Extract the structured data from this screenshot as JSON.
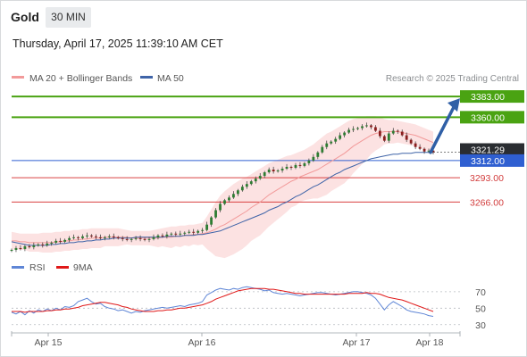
{
  "header": {
    "symbol": "Gold",
    "timeframe": "30 MIN"
  },
  "timestamp": "Thursday, April 17, 2025 11:39:10 AM CET",
  "credit": "Research © 2025 Trading Central",
  "colors": {
    "support": "#d94040",
    "resistance": "#4aa312",
    "pivot": "#2f5fd1",
    "last_price": "#2a2d31",
    "arrow": "#2f5fa6",
    "bb_band": "#f9caca",
    "ma20": "#f29a9a",
    "ma50": "#3f64a8",
    "rsi": "#5f86d6",
    "rsi_ma": "#e01818"
  },
  "chart_data": [
    {
      "type": "candlestick",
      "legend": [
        {
          "name": "MA 20 + Bollinger Bands",
          "color": "#f29a9a"
        },
        {
          "name": "MA 50",
          "color": "#3f64a8"
        }
      ],
      "x_ticks": [
        "Apr 15",
        "Apr 16",
        "Apr 17",
        "Apr 18"
      ],
      "ylim": [
        3212,
        3392
      ],
      "levels": [
        {
          "label": "3383.00",
          "value": 3383,
          "kind": "resistance"
        },
        {
          "label": "3360.00",
          "value": 3360,
          "kind": "resistance"
        },
        {
          "label": "3321.29",
          "value": 3321.29,
          "kind": "last-price"
        },
        {
          "label": "3312.00",
          "value": 3312,
          "kind": "pivot"
        },
        {
          "label": "3293.00",
          "value": 3293,
          "kind": "support"
        },
        {
          "label": "3266.00",
          "value": 3266,
          "kind": "support"
        }
      ],
      "arrow": {
        "from_value": 3322,
        "to_value": 3383,
        "direction": "up"
      },
      "price_series": [
        3213,
        3215,
        3214,
        3217,
        3216,
        3218,
        3219,
        3218,
        3220,
        3221,
        3223,
        3222,
        3224,
        3226,
        3227,
        3226,
        3228,
        3229,
        3228,
        3227,
        3226,
        3227,
        3228,
        3227,
        3226,
        3225,
        3224,
        3225,
        3226,
        3225,
        3224,
        3225,
        3227,
        3229,
        3228,
        3230,
        3231,
        3230,
        3231,
        3232,
        3233,
        3232,
        3234,
        3235,
        3241,
        3249,
        3257,
        3264,
        3268,
        3271,
        3275,
        3279,
        3283,
        3286,
        3289,
        3292,
        3295,
        3299,
        3302,
        3300,
        3301,
        3303,
        3305,
        3304,
        3307,
        3306,
        3309,
        3312,
        3316,
        3321,
        3327,
        3331,
        3333,
        3336,
        3340,
        3343,
        3346,
        3347,
        3348,
        3350,
        3351,
        3349,
        3345,
        3339,
        3334,
        3342,
        3345,
        3344,
        3340,
        3335,
        3331,
        3327,
        3325,
        3322,
        3323,
        3321.29
      ],
      "ma20_series": [
        3223,
        3223,
        3222,
        3222,
        3221,
        3221,
        3221,
        3221,
        3221,
        3221,
        3222,
        3222,
        3223,
        3223,
        3224,
        3224,
        3225,
        3225,
        3226,
        3226,
        3226,
        3227,
        3227,
        3227,
        3227,
        3227,
        3227,
        3226,
        3226,
        3226,
        3226,
        3226,
        3226,
        3226,
        3227,
        3227,
        3227,
        3228,
        3228,
        3229,
        3229,
        3230,
        3230,
        3231,
        3232,
        3234,
        3236,
        3239,
        3241,
        3244,
        3247,
        3250,
        3253,
        3256,
        3260,
        3263,
        3266,
        3270,
        3274,
        3277,
        3280,
        3283,
        3286,
        3289,
        3291,
        3294,
        3296,
        3298,
        3300,
        3302,
        3305,
        3308,
        3311,
        3314,
        3317,
        3320,
        3324,
        3328,
        3331,
        3334,
        3337,
        3340,
        3342,
        3343,
        3344,
        3344,
        3344,
        3344,
        3343,
        3342,
        3341,
        3340,
        3338,
        3336,
        3334,
        3332
      ],
      "bb_upper": [
        3233,
        3232,
        3231,
        3231,
        3231,
        3231,
        3231,
        3232,
        3232,
        3232,
        3233,
        3233,
        3234,
        3234,
        3235,
        3235,
        3236,
        3236,
        3237,
        3237,
        3237,
        3237,
        3237,
        3237,
        3237,
        3236,
        3235,
        3234,
        3234,
        3234,
        3234,
        3234,
        3235,
        3236,
        3237,
        3238,
        3239,
        3239,
        3240,
        3240,
        3241,
        3241,
        3242,
        3243,
        3250,
        3258,
        3266,
        3273,
        3278,
        3282,
        3286,
        3289,
        3292,
        3294,
        3297,
        3300,
        3303,
        3306,
        3309,
        3311,
        3313,
        3315,
        3317,
        3318,
        3320,
        3322,
        3324,
        3327,
        3330,
        3334,
        3338,
        3342,
        3344,
        3347,
        3350,
        3353,
        3356,
        3358,
        3359,
        3360,
        3361,
        3361,
        3361,
        3360,
        3358,
        3357,
        3357,
        3356,
        3355,
        3354,
        3353,
        3352,
        3350,
        3348,
        3346,
        3344
      ],
      "bb_lower": [
        3213,
        3214,
        3213,
        3213,
        3211,
        3211,
        3211,
        3210,
        3210,
        3210,
        3211,
        3211,
        3212,
        3212,
        3213,
        3213,
        3214,
        3214,
        3215,
        3215,
        3215,
        3217,
        3217,
        3217,
        3217,
        3218,
        3219,
        3218,
        3218,
        3218,
        3218,
        3218,
        3217,
        3216,
        3217,
        3216,
        3215,
        3217,
        3216,
        3218,
        3217,
        3219,
        3218,
        3219,
        3214,
        3210,
        3206,
        3205,
        3204,
        3206,
        3208,
        3211,
        3214,
        3218,
        3223,
        3226,
        3229,
        3234,
        3239,
        3243,
        3247,
        3251,
        3255,
        3260,
        3262,
        3266,
        3268,
        3269,
        3270,
        3270,
        3272,
        3274,
        3278,
        3281,
        3284,
        3287,
        3292,
        3298,
        3303,
        3308,
        3313,
        3319,
        3323,
        3326,
        3330,
        3331,
        3331,
        3332,
        3331,
        3330,
        3329,
        3328,
        3326,
        3324,
        3322,
        3320
      ],
      "ma50_series": [
        3222,
        3221,
        3220,
        3219,
        3218,
        3218,
        3218,
        3218,
        3218,
        3219,
        3219,
        3220,
        3220,
        3221,
        3221,
        3222,
        3222,
        3223,
        3223,
        3224,
        3224,
        3225,
        3225,
        3226,
        3226,
        3226,
        3226,
        3226,
        3227,
        3227,
        3227,
        3227,
        3227,
        3227,
        3227,
        3228,
        3228,
        3228,
        3228,
        3229,
        3229,
        3229,
        3230,
        3230,
        3231,
        3232,
        3233,
        3234,
        3236,
        3238,
        3240,
        3242,
        3244,
        3246,
        3248,
        3250,
        3252,
        3254,
        3257,
        3259,
        3261,
        3264,
        3266,
        3269,
        3272,
        3274,
        3277,
        3280,
        3283,
        3285,
        3288,
        3291,
        3294,
        3297,
        3299,
        3302,
        3304,
        3306,
        3308,
        3310,
        3312,
        3314,
        3315,
        3316,
        3317,
        3318,
        3319,
        3319,
        3320,
        3320,
        3320,
        3321,
        3321,
        3321,
        3321,
        3321
      ]
    },
    {
      "type": "line",
      "legend": [
        {
          "name": "RSI",
          "color": "#5f86d6"
        },
        {
          "name": "9MA",
          "color": "#e01818"
        }
      ],
      "y_ticks": [
        70,
        50,
        30
      ],
      "ylim": [
        20,
        85
      ],
      "series": [
        {
          "values": [
            45,
            43,
            46,
            42,
            47,
            44,
            48,
            46,
            49,
            47,
            50,
            48,
            52,
            51,
            53,
            58,
            60,
            62,
            58,
            55,
            56,
            52,
            50,
            49,
            47,
            48,
            46,
            44,
            46,
            45,
            47,
            48,
            49,
            50,
            51,
            50,
            51,
            52,
            53,
            52,
            54,
            55,
            56,
            58,
            66,
            69,
            72,
            74,
            73,
            72,
            74,
            73,
            75,
            76,
            75,
            74,
            73,
            71,
            72,
            69,
            68,
            67,
            68,
            67,
            66,
            65,
            66,
            67,
            68,
            69,
            69,
            68,
            67,
            66,
            67,
            68,
            69,
            70,
            70,
            69,
            68,
            66,
            62,
            55,
            48,
            54,
            58,
            55,
            52,
            48,
            46,
            45,
            44,
            43,
            41,
            40
          ]
        },
        {
          "values": [
            46,
            46,
            46,
            45,
            46,
            46,
            46,
            46,
            47,
            47,
            48,
            48,
            49,
            49,
            50,
            51,
            53,
            54,
            55,
            56,
            57,
            57,
            56,
            55,
            54,
            52,
            51,
            49,
            48,
            47,
            46,
            46,
            46,
            47,
            47,
            48,
            48,
            49,
            50,
            50,
            51,
            52,
            53,
            54,
            56,
            58,
            61,
            63,
            65,
            67,
            69,
            71,
            72,
            73,
            74,
            74,
            74,
            74,
            73,
            73,
            72,
            71,
            70,
            69,
            68,
            68,
            67,
            67,
            67,
            67,
            67,
            67,
            67,
            67,
            67,
            67,
            68,
            68,
            68,
            68,
            69,
            68,
            68,
            67,
            65,
            63,
            62,
            61,
            60,
            58,
            56,
            54,
            52,
            50,
            48,
            46
          ]
        }
      ]
    }
  ]
}
